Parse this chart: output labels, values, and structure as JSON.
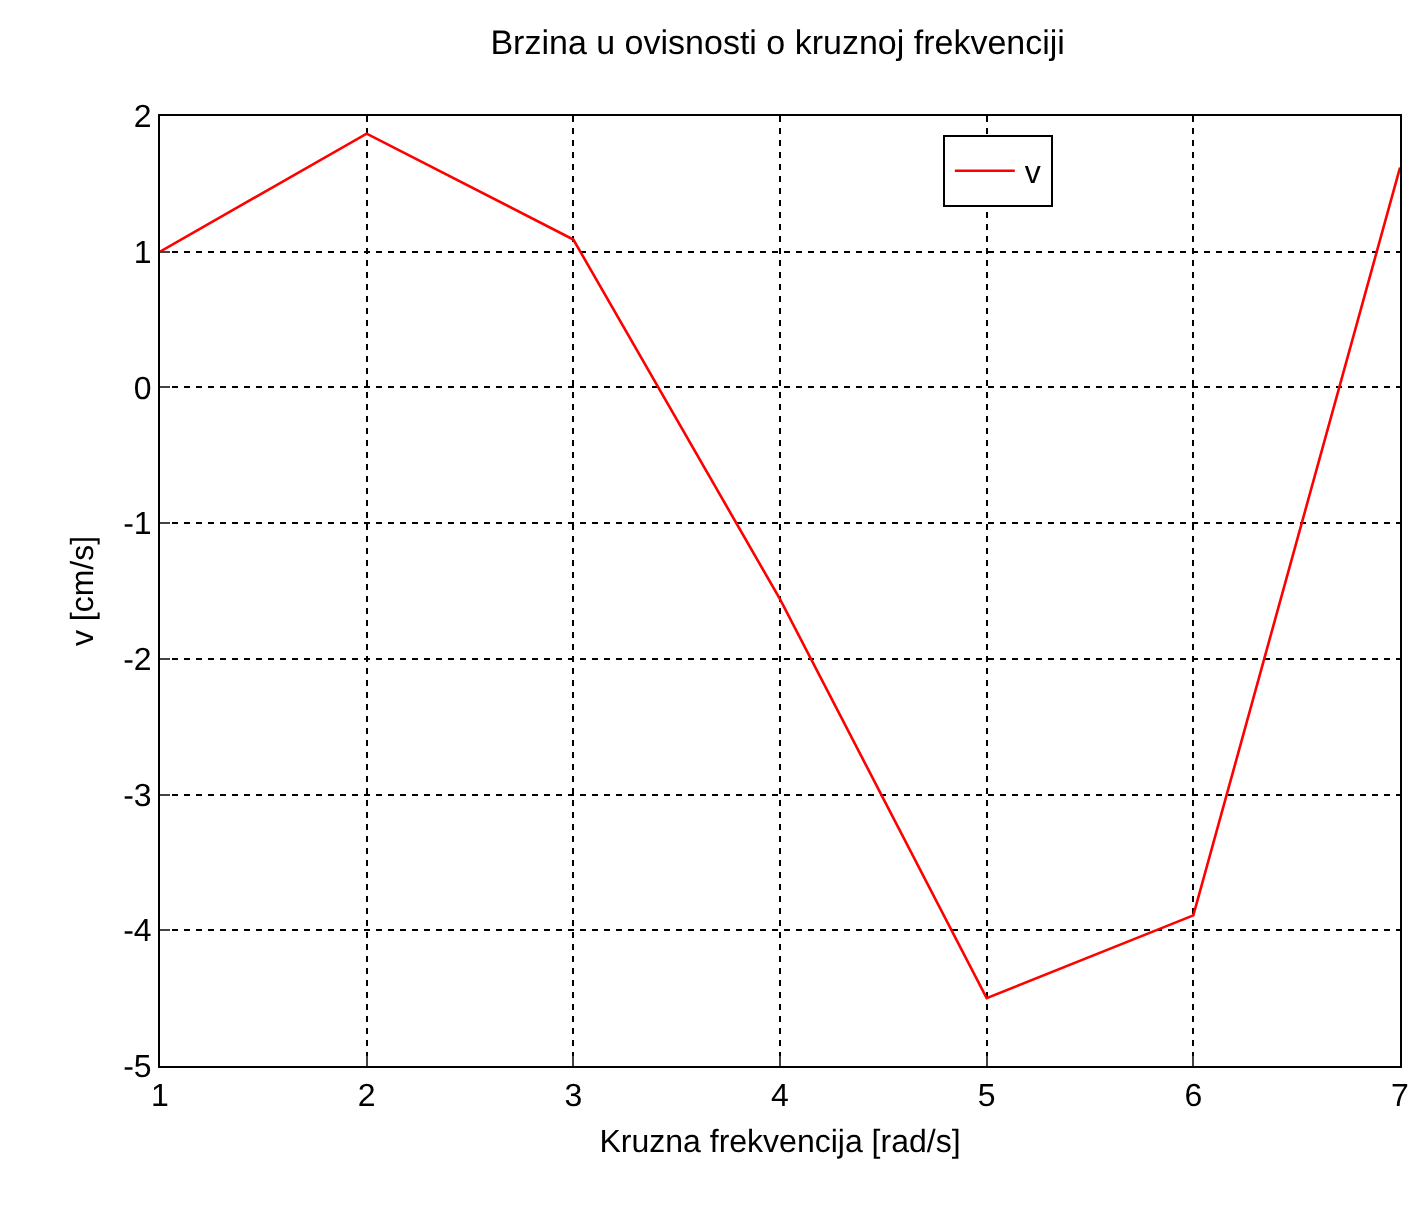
{
  "chart_data": {
    "type": "line",
    "title": "Brzina u ovisnosti o kruznoj frekvenciji",
    "xlabel": "Kruzna frekvencija [rad/s]",
    "ylabel": "v [cm/s]",
    "x": [
      1,
      2,
      3,
      4,
      5,
      6,
      7
    ],
    "series": [
      {
        "name": "v",
        "color": "#ff0000",
        "values": [
          1.0,
          1.87,
          1.09,
          -1.56,
          -4.5,
          -3.89,
          1.62
        ]
      }
    ],
    "xlim": [
      1,
      7
    ],
    "xticks": [
      1,
      2,
      3,
      4,
      5,
      6,
      7
    ],
    "ylim": [
      -5,
      2
    ],
    "yticks": [
      -5,
      -4,
      -3,
      -2,
      -1,
      0,
      1,
      2
    ],
    "grid": true,
    "legend": "top right",
    "marker": "none",
    "line_style": "solid"
  }
}
